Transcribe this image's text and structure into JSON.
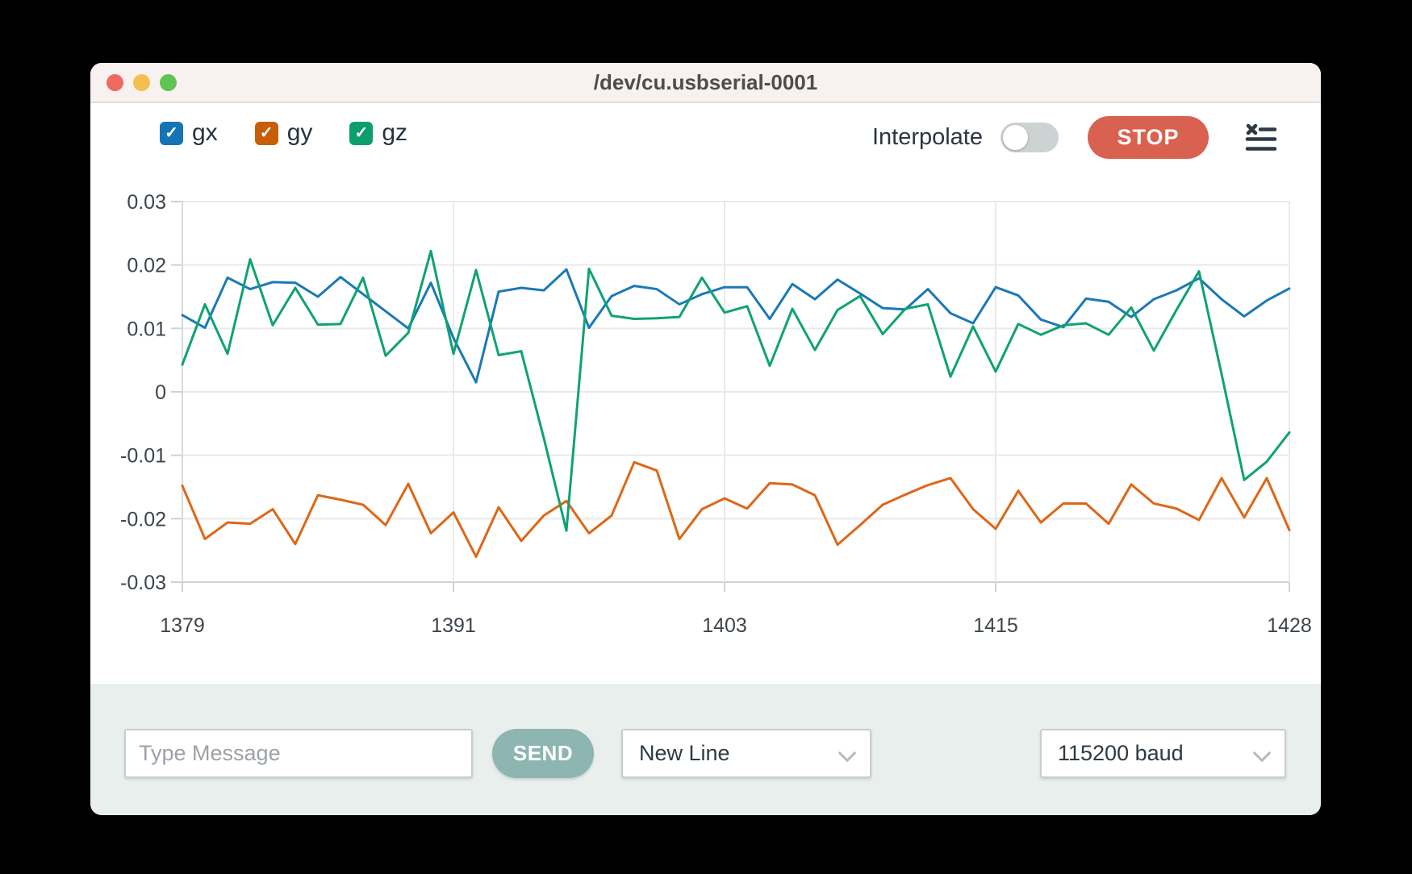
{
  "window": {
    "title": "/dev/cu.usbserial-0001",
    "traffic_lights": {
      "close": "#ee6a5f",
      "minimize": "#f5bf4f",
      "zoom": "#5fc454"
    }
  },
  "legend": {
    "items": [
      {
        "label": "gx",
        "color": "#1574b4",
        "checked": true
      },
      {
        "label": "gy",
        "color": "#c75d07",
        "checked": true
      },
      {
        "label": "gz",
        "color": "#0c9f6d",
        "checked": true
      }
    ],
    "checkmark": "✓"
  },
  "controls": {
    "interpolate_label": "Interpolate",
    "interpolate_on": false,
    "stop_label": "STOP",
    "stop_color": "#d9614f"
  },
  "chart_data": {
    "type": "line",
    "x": [
      1379,
      1380,
      1381,
      1382,
      1383,
      1384,
      1385,
      1386,
      1387,
      1388,
      1389,
      1390,
      1391,
      1392,
      1393,
      1394,
      1395,
      1396,
      1397,
      1398,
      1399,
      1400,
      1401,
      1402,
      1403,
      1404,
      1405,
      1406,
      1407,
      1408,
      1409,
      1410,
      1411,
      1412,
      1413,
      1414,
      1415,
      1416,
      1417,
      1418,
      1419,
      1420,
      1421,
      1422,
      1423,
      1424,
      1425,
      1426,
      1427,
      1428
    ],
    "xticks": [
      1379,
      1391,
      1403,
      1415,
      1428
    ],
    "yticks": [
      0.03,
      0.02,
      0.01,
      0,
      -0.01,
      -0.02,
      -0.03
    ],
    "ylim": [
      -0.03,
      0.03
    ],
    "grid": true,
    "legend_position": "top-left checkboxes",
    "series": [
      {
        "name": "gx",
        "color": "#1b79b7",
        "values": [
          0.0121,
          0.0101,
          0.018,
          0.0162,
          0.0173,
          0.0172,
          0.015,
          0.0181,
          0.0154,
          0.0127,
          0.01,
          0.0172,
          0.0085,
          0.0015,
          0.0158,
          0.0164,
          0.016,
          0.0193,
          0.0101,
          0.0151,
          0.0167,
          0.0162,
          0.0138,
          0.0154,
          0.0165,
          0.0165,
          0.0115,
          0.017,
          0.0146,
          0.0177,
          0.0155,
          0.0132,
          0.013,
          0.0162,
          0.0124,
          0.0108,
          0.0165,
          0.0152,
          0.0114,
          0.0102,
          0.0147,
          0.0142,
          0.0118,
          0.0146,
          0.016,
          0.0179,
          0.0146,
          0.0119,
          0.0144,
          0.0163
        ]
      },
      {
        "name": "gy",
        "color": "#dd6716",
        "values": [
          -0.0148,
          -0.0232,
          -0.0206,
          -0.0208,
          -0.0185,
          -0.024,
          -0.0163,
          -0.017,
          -0.0178,
          -0.021,
          -0.0145,
          -0.0223,
          -0.019,
          -0.026,
          -0.0182,
          -0.0235,
          -0.0195,
          -0.0172,
          -0.0223,
          -0.0195,
          -0.0111,
          -0.0124,
          -0.0232,
          -0.0185,
          -0.0168,
          -0.0184,
          -0.0144,
          -0.0146,
          -0.0163,
          -0.0241,
          -0.021,
          -0.0178,
          -0.0162,
          -0.0147,
          -0.0136,
          -0.0185,
          -0.0216,
          -0.0156,
          -0.0206,
          -0.0176,
          -0.0176,
          -0.0208,
          -0.0146,
          -0.0176,
          -0.0184,
          -0.0202,
          -0.0136,
          -0.0198,
          -0.0136,
          -0.0218
        ]
      },
      {
        "name": "gz",
        "color": "#0fa273",
        "values": [
          0.0043,
          0.0138,
          0.006,
          0.0209,
          0.0105,
          0.0164,
          0.0106,
          0.0107,
          0.018,
          0.0057,
          0.0093,
          0.0222,
          0.006,
          0.0192,
          0.0058,
          0.0064,
          -0.0073,
          -0.0219,
          0.0194,
          0.012,
          0.0115,
          0.0116,
          0.0118,
          0.018,
          0.0125,
          0.0135,
          0.0041,
          0.0131,
          0.0066,
          0.0129,
          0.0151,
          0.0091,
          0.0131,
          0.0138,
          0.0024,
          0.0103,
          0.0032,
          0.0107,
          0.009,
          0.0105,
          0.0108,
          0.009,
          0.0133,
          0.0065,
          0.0129,
          0.019,
          0.0028,
          -0.0139,
          -0.011,
          -0.0064
        ]
      }
    ]
  },
  "footer": {
    "message_placeholder": "Type Message",
    "send_label": "SEND",
    "send_color": "#8db6b2",
    "line_ending_value": "New Line",
    "baud_value": "115200 baud"
  }
}
